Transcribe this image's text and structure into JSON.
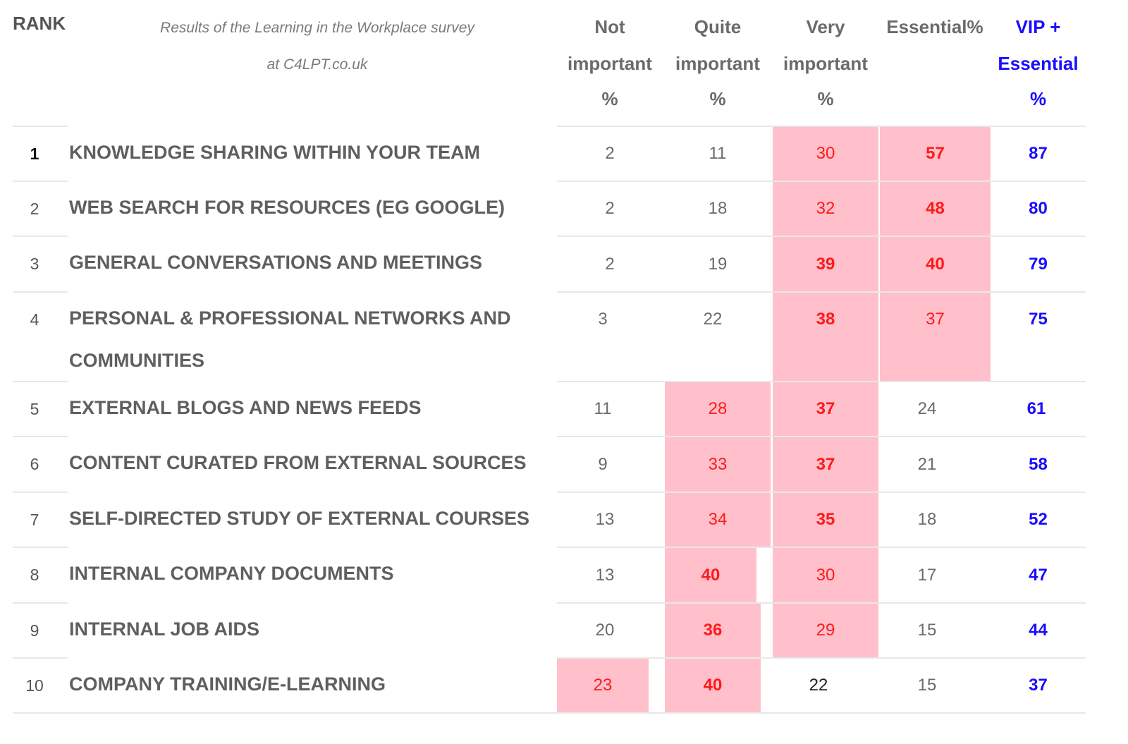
{
  "header": {
    "rank": "RANK",
    "subtitle_line1": "Results of the Learning in the Workplace survey",
    "subtitle_line2": "at C4LPT.co.uk",
    "col_not_important": [
      "Not",
      "important",
      "%"
    ],
    "col_quite_important": [
      "Quite",
      "important",
      "%"
    ],
    "col_very_important": [
      "Very",
      "important",
      "%"
    ],
    "col_essential": [
      "Essential%"
    ],
    "col_vip_essential": [
      "VIP +",
      "Essential",
      "%"
    ]
  },
  "colors": {
    "highlight_bg": "#ffc0cb",
    "highlight_text": "#ff1a1a",
    "vip_text": "#1a0dff",
    "label_text": "#5f5f5f"
  },
  "rows": [
    {
      "rank": "1",
      "label": "KNOWLEDGE SHARING WITHIN YOUR TEAM",
      "not": "2",
      "quite": "11",
      "very": "30",
      "essential": "57",
      "vip": "87"
    },
    {
      "rank": "2",
      "label": "WEB SEARCH FOR RESOURCES (EG GOOGLE)",
      "not": "2",
      "quite": "18",
      "very": "32",
      "essential": "48",
      "vip": "80"
    },
    {
      "rank": "3",
      "label": "GENERAL CONVERSATIONS AND MEETINGS",
      "not": "2",
      "quite": "19",
      "very": "39",
      "essential": "40",
      "vip": "79"
    },
    {
      "rank": "4",
      "label_line1": "PERSONAL & PROFESSIONAL NETWORKS AND",
      "label_line2": "COMMUNITIES",
      "not": "3",
      "quite": "22",
      "very": "38",
      "essential": "37",
      "vip": "75"
    },
    {
      "rank": "5",
      "label": "EXTERNAL BLOGS AND NEWS FEEDS",
      "not": "11",
      "quite": "28",
      "very": "37",
      "essential": "24",
      "vip": "61"
    },
    {
      "rank": "6",
      "label": "CONTENT CURATED FROM EXTERNAL SOURCES",
      "not": "9",
      "quite": "33",
      "very": "37",
      "essential": "21",
      "vip": "58"
    },
    {
      "rank": "7",
      "label": "SELF-DIRECTED STUDY OF EXTERNAL COURSES",
      "not": "13",
      "quite": "34",
      "very": "35",
      "essential": "18",
      "vip": "52"
    },
    {
      "rank": "8",
      "label": "INTERNAL COMPANY DOCUMENTS",
      "not": "13",
      "quite": "40",
      "very": "30",
      "essential": "17",
      "vip": "47"
    },
    {
      "rank": "9",
      "label": "INTERNAL JOB AIDS",
      "not": "20",
      "quite": "36",
      "very": "29",
      "essential": "15",
      "vip": "44"
    },
    {
      "rank": "10",
      "label": "COMPANY TRAINING/E-LEARNING",
      "not": "23",
      "quite": "40",
      "very": "22",
      "essential": "15",
      "vip": "37"
    }
  ]
}
